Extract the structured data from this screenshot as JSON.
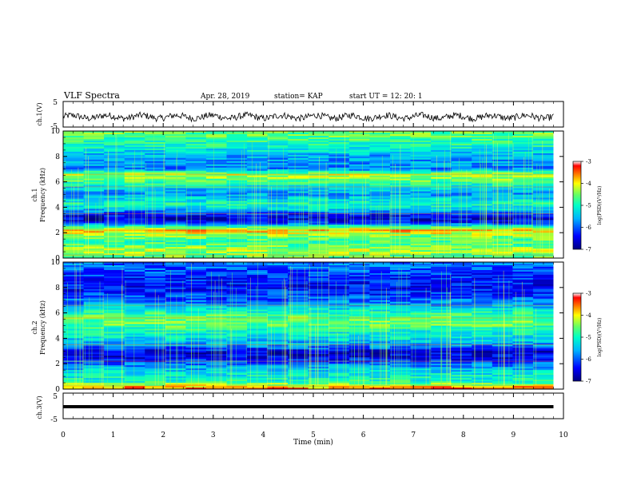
{
  "header": {
    "title": "VLF Spectra",
    "date": "Apr. 28, 2019",
    "station": "station= KAP",
    "start_time": "start  UT =   12: 20: 1"
  },
  "colors": {
    "trace": "#000000",
    "colormap": [
      "#000080",
      "#0000ff",
      "#00b4ff",
      "#00ffc8",
      "#64ff64",
      "#ffff00",
      "#ff8000",
      "#ff0000",
      "#ffffff"
    ]
  },
  "chart_data": [
    {
      "type": "line",
      "ylabel": "ch.1(V)",
      "ylim": [
        -5,
        5
      ],
      "yticks": [
        "5",
        "-5"
      ],
      "xlim": [
        0,
        10
      ],
      "note": "noisy waveform around approx -1 V, amplitude about ±2 V"
    },
    {
      "type": "heatmap",
      "ylabel": "ch.1\nFrequency (kHz)",
      "ylabel_lines": [
        "ch.1",
        "Frequency  (kHz)"
      ],
      "ylim": [
        0,
        10
      ],
      "yticks": [
        "0",
        "2",
        "4",
        "6",
        "8",
        "10"
      ],
      "xlim": [
        0,
        10
      ],
      "data_end_min": 9.8,
      "colorbar": {
        "label": "log(PSD)(V²/Hz)",
        "ticks": [
          "-3",
          "-4",
          "-5",
          "-6",
          "-7"
        ],
        "range": [
          -7,
          -3
        ]
      },
      "bands_kHz": [
        {
          "freq": 0.2,
          "level": -4.6
        },
        {
          "freq": 0.6,
          "level": -4.3
        },
        {
          "freq": 1.2,
          "level": -4.8
        },
        {
          "freq": 1.6,
          "level": -4.6
        },
        {
          "freq": 2.2,
          "level": -3.8
        },
        {
          "freq": 2.8,
          "level": -6.3
        },
        {
          "freq": 3.1,
          "level": -6.6
        },
        {
          "freq": 3.5,
          "level": -6.2
        },
        {
          "freq": 3.9,
          "level": -5.3
        },
        {
          "freq": 4.3,
          "level": -5.0
        },
        {
          "freq": 5.0,
          "level": -5.7
        },
        {
          "freq": 5.5,
          "level": -5.4
        },
        {
          "freq": 6.0,
          "level": -4.7
        },
        {
          "freq": 6.6,
          "level": -4.2
        },
        {
          "freq": 7.0,
          "level": -5.8
        },
        {
          "freq": 8.0,
          "level": -5.6
        },
        {
          "freq": 9.0,
          "level": -4.9
        },
        {
          "freq": 9.7,
          "level": -4.6
        }
      ]
    },
    {
      "type": "heatmap",
      "ylabel_lines": [
        "ch.2",
        "Frequency  (kHz)"
      ],
      "ylim": [
        0,
        10
      ],
      "yticks": [
        "0",
        "2",
        "4",
        "6",
        "8",
        "10"
      ],
      "xlim": [
        0,
        10
      ],
      "data_end_min": 9.8,
      "colorbar": {
        "label": "log(PSD)(V²/Hz)",
        "ticks": [
          "-3",
          "-4",
          "-5",
          "-6",
          "-7"
        ],
        "range": [
          -7,
          -3
        ]
      },
      "bands_kHz": [
        {
          "freq": 0.1,
          "level": -3.6
        },
        {
          "freq": 0.6,
          "level": -5.0
        },
        {
          "freq": 1.2,
          "level": -5.2
        },
        {
          "freq": 1.7,
          "level": -5.6
        },
        {
          "freq": 2.4,
          "level": -6.4
        },
        {
          "freq": 2.9,
          "level": -6.6
        },
        {
          "freq": 3.4,
          "level": -5.8
        },
        {
          "freq": 4.0,
          "level": -5.3
        },
        {
          "freq": 4.6,
          "level": -5.0
        },
        {
          "freq": 5.2,
          "level": -4.5
        },
        {
          "freq": 5.8,
          "level": -4.7
        },
        {
          "freq": 6.4,
          "level": -5.4
        },
        {
          "freq": 7.0,
          "level": -6.0
        },
        {
          "freq": 8.0,
          "level": -6.4
        },
        {
          "freq": 9.0,
          "level": -6.2
        },
        {
          "freq": 9.7,
          "level": -5.9
        }
      ]
    },
    {
      "type": "line",
      "ylabel": "ch.3(V)",
      "ylim": [
        -5,
        5
      ],
      "yticks": [
        "5",
        "-5"
      ],
      "xlim": [
        0,
        10
      ],
      "note": "flat line near -0.2 V"
    }
  ],
  "xaxis": {
    "label": "Time  (min)",
    "ticks": [
      "0",
      "1",
      "2",
      "3",
      "4",
      "5",
      "6",
      "7",
      "8",
      "9",
      "10"
    ]
  }
}
